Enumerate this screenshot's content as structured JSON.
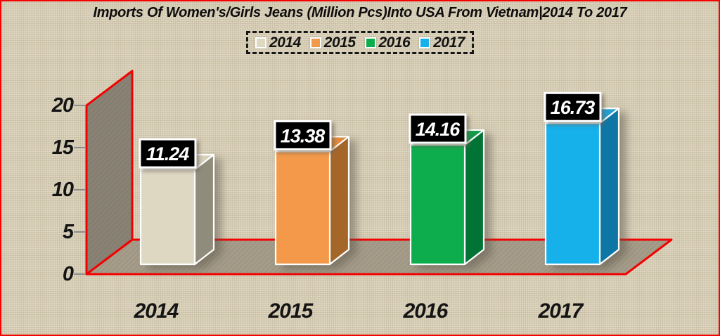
{
  "chart_data": {
    "type": "bar",
    "style": "3d-column",
    "title": "Imports Of Women's/Girls Jeans (Million Pcs)Into USA From Vietnam|2014 To 2017",
    "categories": [
      "2014",
      "2015",
      "2016",
      "2017"
    ],
    "values": [
      11.24,
      13.38,
      14.16,
      16.73
    ],
    "data_labels": [
      "11.24",
      "13.38",
      "14.16",
      "16.73"
    ],
    "series": [
      {
        "name": "2014",
        "value": 11.24,
        "front_color": "#DED8C3",
        "side_color": "#8F8C7B",
        "top_color": "#D6D0BB"
      },
      {
        "name": "2015",
        "value": 13.38,
        "front_color": "#F3994A",
        "side_color": "#A5662C",
        "top_color": "#E08A3E"
      },
      {
        "name": "2016",
        "value": 14.16,
        "front_color": "#0CAD4D",
        "side_color": "#047334",
        "top_color": "#0A9C46"
      },
      {
        "name": "2017",
        "value": 16.73,
        "front_color": "#16B0EB",
        "side_color": "#0B76A4",
        "top_color": "#219FD4"
      }
    ],
    "xlabel": "",
    "ylabel": "",
    "ylim": [
      0,
      20
    ],
    "yticks": [
      0,
      5,
      10,
      15,
      20
    ],
    "y_tick_labels_desc": [
      "20",
      "15",
      "10",
      "5",
      "0"
    ],
    "grid": false,
    "legend_position": "top-center"
  },
  "legend": {
    "items": [
      {
        "label": "2014",
        "color": "#DED8C3"
      },
      {
        "label": "2015",
        "color": "#F3994A"
      },
      {
        "label": "2016",
        "color": "#0CAD4D"
      },
      {
        "label": "2017",
        "color": "#16B0EB"
      }
    ]
  },
  "colors": {
    "background": "#DAD1B9",
    "frame_border": "#F40000",
    "axis_line": "#F40000",
    "wall_fill": "#8A8375",
    "floor_fill": "#A59C89",
    "tick_mark": "#8C8C8C",
    "text": "#141414",
    "data_label_bg": "#000000",
    "data_label_border": "#FFFFFF",
    "data_label_text": "#FFFFFF"
  }
}
